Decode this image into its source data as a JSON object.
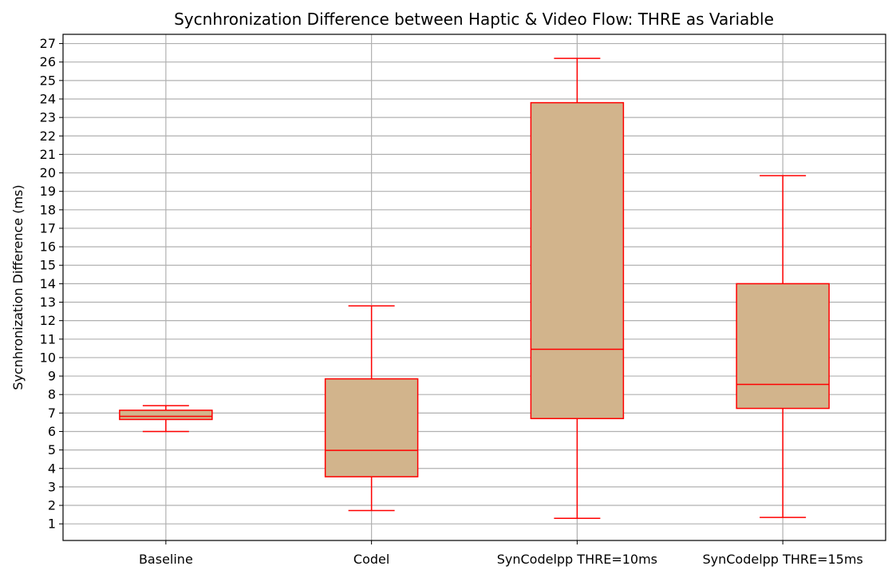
{
  "chart_data": {
    "type": "box",
    "title": "Sycnhronization Difference between Haptic & Video Flow: THRE as Variable",
    "xlabel": "",
    "ylabel": "Sycnhronization Difference (ms)",
    "ylim": [
      0.1,
      27.5
    ],
    "yticks": [
      1,
      2,
      3,
      4,
      5,
      6,
      7,
      8,
      9,
      10,
      11,
      12,
      13,
      14,
      15,
      16,
      17,
      18,
      19,
      20,
      21,
      22,
      23,
      24,
      25,
      26,
      27
    ],
    "grid": true,
    "box_fill": "#D2B48C",
    "line_color": "#FF0000",
    "categories": [
      "Baseline",
      "Codel",
      "SynCodelpp THRE=10ms",
      "SynCodelpp THRE=15ms"
    ],
    "boxes": [
      {
        "label": "Baseline",
        "whisker_low": 6.0,
        "q1": 6.65,
        "median": 6.82,
        "q3": 7.15,
        "whisker_high": 7.4
      },
      {
        "label": "Codel",
        "whisker_low": 1.72,
        "q1": 3.55,
        "median": 4.98,
        "q3": 8.85,
        "whisker_high": 12.8
      },
      {
        "label": "SynCodelpp THRE=10ms",
        "whisker_low": 1.3,
        "q1": 6.7,
        "median": 10.45,
        "q3": 23.8,
        "whisker_high": 26.2
      },
      {
        "label": "SynCodelpp THRE=15ms",
        "whisker_low": 1.35,
        "q1": 7.25,
        "median": 8.55,
        "q3": 14.0,
        "whisker_high": 19.85
      }
    ]
  }
}
